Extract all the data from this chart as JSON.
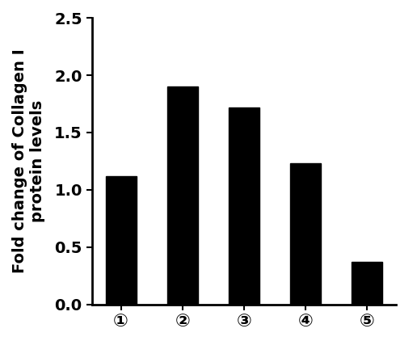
{
  "categories": [
    "①",
    "②",
    "③",
    "④",
    "⑤"
  ],
  "values": [
    1.12,
    1.9,
    1.72,
    1.23,
    0.37
  ],
  "bar_color": "#000000",
  "ylabel_line1": "Fold change of Collagen I",
  "ylabel_line2": "protein levels",
  "ylim": [
    0,
    2.5
  ],
  "yticks": [
    0.0,
    0.5,
    1.0,
    1.5,
    2.0,
    2.5
  ],
  "bar_width": 0.5,
  "background_color": "#ffffff",
  "ylabel_fontsize": 14,
  "tick_fontsize": 14,
  "spine_linewidth": 2.0,
  "figsize": [
    5.16,
    4.43
  ],
  "dpi": 100
}
